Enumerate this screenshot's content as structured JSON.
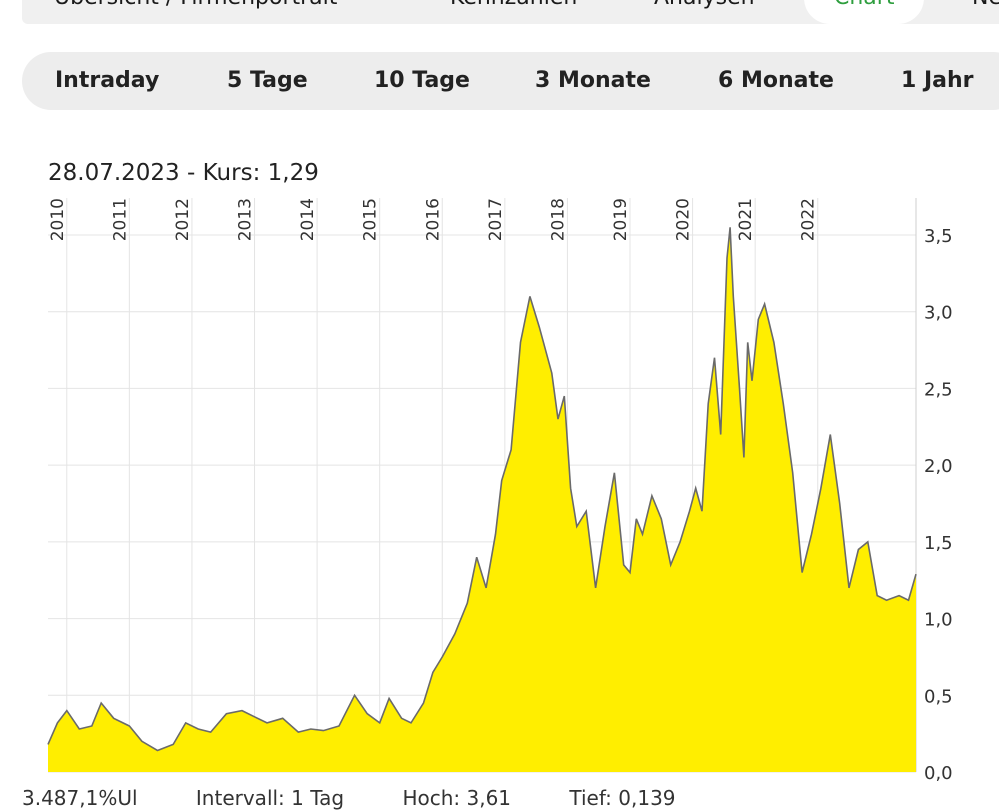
{
  "nav": {
    "tabs": [
      {
        "label": "Übersicht / Firmenportrait",
        "active": false
      },
      {
        "label": "Kennzahlen",
        "active": false
      },
      {
        "label": "Analysen",
        "active": false
      },
      {
        "label": "Chart",
        "active": true
      },
      {
        "label": "Ne",
        "active": false
      }
    ]
  },
  "ranges": [
    "Intraday",
    "5 Tage",
    "10 Tage",
    "3 Monate",
    "6 Monate",
    "1 Jahr"
  ],
  "info": {
    "date": "28.07.2023",
    "kurs_label": " - Kurs: 1,29"
  },
  "footer": {
    "exchange": "3.487,1%Ul",
    "interval": "Intervall: 1 Tag",
    "hoch": "Hoch: 3,61",
    "tief": "Tief: 0,139"
  },
  "colors": {
    "fill": "#ffee00",
    "line": "#6a6a6a",
    "grid": "#e4e4e4",
    "active_tab": "#2e9e3e"
  },
  "chart_data": {
    "type": "area",
    "x_ticks": [
      "2010",
      "2011",
      "2012",
      "2013",
      "2014",
      "2015",
      "2016",
      "2017",
      "2018",
      "2019",
      "2020",
      "2021",
      "2022"
    ],
    "y_ticks": [
      "0,0",
      "0,5",
      "1,0",
      "1,5",
      "2,0",
      "2,5",
      "3,0",
      "3,5"
    ],
    "ylim": [
      0,
      3.5
    ],
    "xlim": [
      2009.7,
      2023.57
    ],
    "grid": true,
    "series": [
      {
        "x": [
          2009.7,
          2009.85,
          2010.0,
          2010.2,
          2010.4,
          2010.55,
          2010.75,
          2011.0,
          2011.2,
          2011.45,
          2011.7,
          2011.9,
          2012.1,
          2012.3,
          2012.55,
          2012.8,
          2013.0,
          2013.2,
          2013.45,
          2013.7,
          2013.9,
          2014.1,
          2014.35,
          2014.6,
          2014.8,
          2015.0,
          2015.15,
          2015.35,
          2015.5,
          2015.7,
          2015.85,
          2016.0,
          2016.2,
          2016.4,
          2016.55,
          2016.7,
          2016.85,
          2016.95,
          2017.1,
          2017.25,
          2017.4,
          2017.55,
          2017.75,
          2017.85,
          2017.95,
          2018.05,
          2018.15,
          2018.3,
          2018.45,
          2018.6,
          2018.75,
          2018.9,
          2019.0,
          2019.1,
          2019.2,
          2019.35,
          2019.5,
          2019.65,
          2019.8,
          2019.95,
          2020.05,
          2020.15,
          2020.25,
          2020.35,
          2020.45,
          2020.55,
          2020.6,
          2020.65,
          2020.75,
          2020.82,
          2020.88,
          2020.95,
          2021.05,
          2021.15,
          2021.3,
          2021.45,
          2021.6,
          2021.75,
          2021.9,
          2022.05,
          2022.2,
          2022.35,
          2022.5,
          2022.65,
          2022.8,
          2022.95,
          2023.1,
          2023.3,
          2023.45,
          2023.57
        ],
        "y": [
          0.18,
          0.32,
          0.4,
          0.28,
          0.3,
          0.45,
          0.35,
          0.3,
          0.2,
          0.14,
          0.18,
          0.32,
          0.28,
          0.26,
          0.38,
          0.4,
          0.36,
          0.32,
          0.35,
          0.26,
          0.28,
          0.27,
          0.3,
          0.5,
          0.38,
          0.32,
          0.48,
          0.35,
          0.32,
          0.45,
          0.65,
          0.75,
          0.9,
          1.1,
          1.4,
          1.2,
          1.55,
          1.9,
          2.1,
          2.8,
          3.1,
          2.9,
          2.6,
          2.3,
          2.45,
          1.85,
          1.6,
          1.7,
          1.2,
          1.6,
          1.95,
          1.35,
          1.3,
          1.65,
          1.55,
          1.8,
          1.65,
          1.35,
          1.5,
          1.7,
          1.85,
          1.7,
          2.4,
          2.7,
          2.2,
          3.35,
          3.55,
          3.1,
          2.5,
          2.05,
          2.8,
          2.55,
          2.95,
          3.05,
          2.8,
          2.4,
          1.95,
          1.3,
          1.55,
          1.85,
          2.2,
          1.75,
          1.2,
          1.45,
          1.5,
          1.15,
          1.12,
          1.15,
          1.12,
          1.29
        ]
      }
    ]
  }
}
